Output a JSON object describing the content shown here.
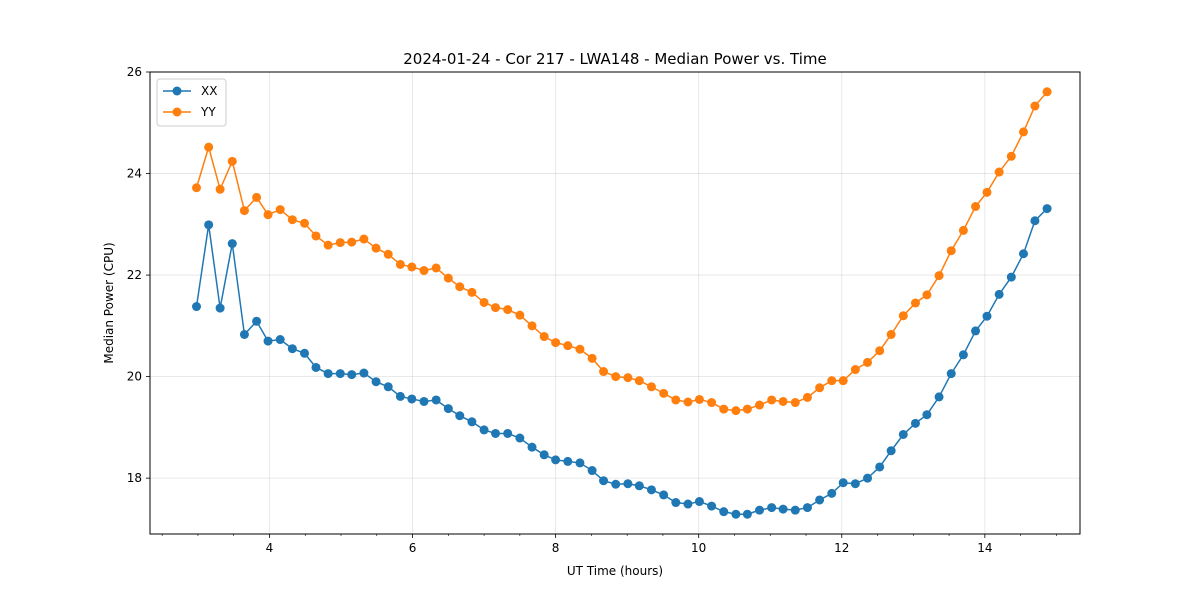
{
  "chart_data": {
    "type": "line",
    "title": "2024-01-24 - Cor 217 - LWA148 - Median Power vs. Time",
    "xlabel": "UT Time (hours)",
    "ylabel": "Median Power (CPU)",
    "xlim": [
      2.33,
      15.33
    ],
    "ylim": [
      16.9,
      26.0
    ],
    "xticks": [
      4,
      6,
      8,
      10,
      12,
      14
    ],
    "xtick_labels": [
      "4",
      "6",
      "8",
      "10",
      "12",
      "14"
    ],
    "yticks": [
      18,
      20,
      22,
      24,
      26
    ],
    "ytick_labels": [
      "18",
      "20",
      "22",
      "24",
      "26"
    ],
    "grid": true,
    "legend_position": "top-left",
    "x": [
      2.98,
      3.15,
      3.31,
      3.48,
      3.65,
      3.82,
      3.98,
      4.15,
      4.32,
      4.49,
      4.65,
      4.82,
      4.99,
      5.15,
      5.32,
      5.49,
      5.66,
      5.83,
      5.99,
      6.16,
      6.33,
      6.5,
      6.66,
      6.83,
      7.0,
      7.16,
      7.33,
      7.5,
      7.67,
      7.84,
      8.0,
      8.17,
      8.34,
      8.51,
      8.67,
      8.84,
      9.01,
      9.17,
      9.34,
      9.51,
      9.68,
      9.85,
      10.01,
      10.18,
      10.35,
      10.52,
      10.68,
      10.85,
      11.02,
      11.18,
      11.35,
      11.52,
      11.69,
      11.86,
      12.02,
      12.19,
      12.36,
      12.53,
      12.69,
      12.86,
      13.03,
      13.19,
      13.36,
      13.53,
      13.7,
      13.87,
      14.03,
      14.2,
      14.37,
      14.54,
      14.7,
      14.87
    ],
    "series": [
      {
        "name": "XX",
        "color": "#1f77b4",
        "values": [
          21.38,
          22.99,
          21.35,
          22.62,
          20.83,
          21.09,
          20.7,
          20.73,
          20.55,
          20.46,
          20.18,
          20.06,
          20.06,
          20.04,
          20.07,
          19.9,
          19.8,
          19.61,
          19.56,
          19.51,
          19.54,
          19.37,
          19.23,
          19.11,
          18.95,
          18.88,
          18.88,
          18.79,
          18.61,
          18.46,
          18.36,
          18.33,
          18.3,
          18.15,
          17.95,
          17.88,
          17.89,
          17.85,
          17.77,
          17.67,
          17.52,
          17.49,
          17.54,
          17.45,
          17.34,
          17.29,
          17.29,
          17.37,
          17.42,
          17.39,
          17.37,
          17.42,
          17.57,
          17.7,
          17.91,
          17.89,
          18.0,
          18.22,
          18.54,
          18.86,
          19.08,
          19.25,
          19.6,
          20.06,
          20.43,
          20.9,
          21.19,
          21.62,
          21.96,
          22.42,
          23.07,
          23.31
        ]
      },
      {
        "name": "YY",
        "color": "#ff7f0e",
        "values": [
          23.72,
          24.52,
          23.69,
          24.24,
          23.27,
          23.53,
          23.19,
          23.29,
          23.09,
          23.02,
          22.77,
          22.59,
          22.64,
          22.65,
          22.71,
          22.53,
          22.41,
          22.21,
          22.16,
          22.09,
          22.14,
          21.94,
          21.77,
          21.66,
          21.46,
          21.36,
          21.32,
          21.21,
          21.0,
          20.79,
          20.67,
          20.61,
          20.54,
          20.36,
          20.1,
          20.0,
          19.98,
          19.92,
          19.8,
          19.67,
          19.54,
          19.5,
          19.55,
          19.49,
          19.36,
          19.33,
          19.36,
          19.44,
          19.54,
          19.51,
          19.49,
          19.59,
          19.78,
          19.92,
          19.92,
          20.14,
          20.28,
          20.51,
          20.83,
          21.2,
          21.45,
          21.61,
          21.99,
          22.48,
          22.88,
          23.35,
          23.63,
          24.03,
          24.34,
          24.82,
          25.33,
          25.61
        ]
      }
    ]
  }
}
